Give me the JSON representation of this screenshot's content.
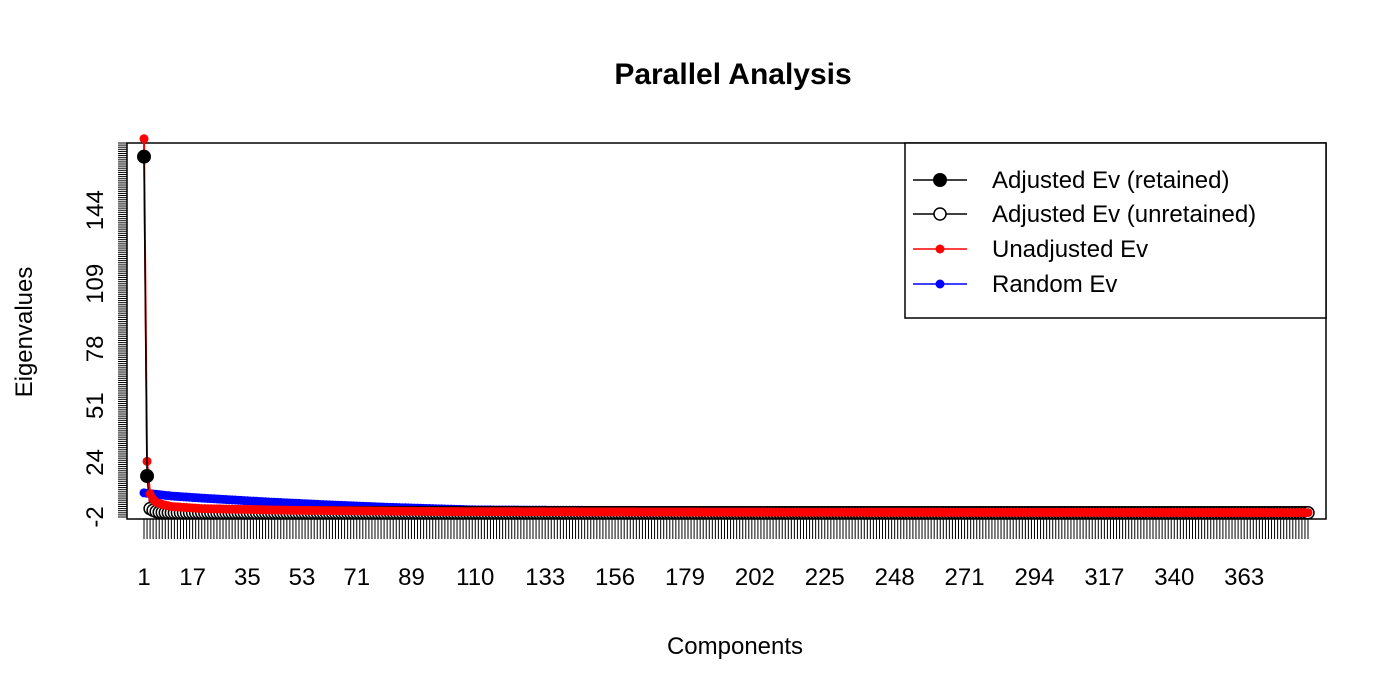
{
  "chart_data": {
    "type": "line",
    "title": "Parallel Analysis",
    "xlabel": "Components",
    "ylabel": "Eigenvalues",
    "xlim": [
      1,
      384
    ],
    "ylim": [
      -2,
      176
    ],
    "x_tick_labels": [
      "1",
      "17",
      "35",
      "53",
      "71",
      "89",
      "110",
      "133",
      "156",
      "179",
      "202",
      "225",
      "248",
      "271",
      "294",
      "317",
      "340",
      "363"
    ],
    "y_tick_labels": [
      "-2",
      "24",
      "51",
      "78",
      "109",
      "144"
    ],
    "legend": {
      "position": "top-right",
      "entries": [
        {
          "label": "Adjusted Ev (retained)",
          "color": "#000000",
          "marker": "filled-circle"
        },
        {
          "label": "Adjusted Ev (unretained)",
          "color": "#000000",
          "marker": "open-circle"
        },
        {
          "label": "Unadjusted Ev",
          "color": "#ff0000",
          "marker": "filled-circle-small"
        },
        {
          "label": "Random Ev",
          "color": "#0000ff",
          "marker": "filled-circle-small"
        }
      ]
    },
    "series": [
      {
        "name": "Adjusted Ev (retained)",
        "color": "#000000",
        "points": [
          [
            1,
            169.5
          ],
          [
            2,
            17.5
          ]
        ]
      },
      {
        "name": "Adjusted Ev (unretained)",
        "color": "#000000",
        "points": [
          [
            3,
            2.0
          ],
          [
            4,
            1.2
          ],
          [
            5,
            0.6
          ],
          [
            6,
            0.3
          ],
          [
            8,
            0.1
          ],
          [
            12,
            0.0
          ],
          [
            20,
            0.0
          ],
          [
            40,
            0.0
          ],
          [
            100,
            0.0
          ],
          [
            384,
            0.0
          ]
        ]
      },
      {
        "name": "Unadjusted Ev",
        "color": "#ff0000",
        "points": [
          [
            1,
            178
          ],
          [
            2,
            24.5
          ],
          [
            3,
            9
          ],
          [
            4,
            6.5
          ],
          [
            5,
            5
          ],
          [
            7,
            4
          ],
          [
            10,
            3
          ],
          [
            20,
            2
          ],
          [
            50,
            1.2
          ],
          [
            100,
            0.6
          ],
          [
            200,
            0.3
          ],
          [
            384,
            0.1
          ]
        ]
      },
      {
        "name": "Random Ev",
        "color": "#0000ff",
        "points": [
          [
            1,
            9.5
          ],
          [
            5,
            8.8
          ],
          [
            10,
            8.0
          ],
          [
            20,
            7.0
          ],
          [
            40,
            5.3
          ],
          [
            60,
            3.9
          ],
          [
            80,
            2.7
          ],
          [
            100,
            1.8
          ],
          [
            110,
            1.4
          ],
          [
            140,
            1.2
          ],
          [
            200,
            1.0
          ],
          [
            300,
            0.9
          ],
          [
            384,
            0.8
          ]
        ]
      }
    ]
  }
}
